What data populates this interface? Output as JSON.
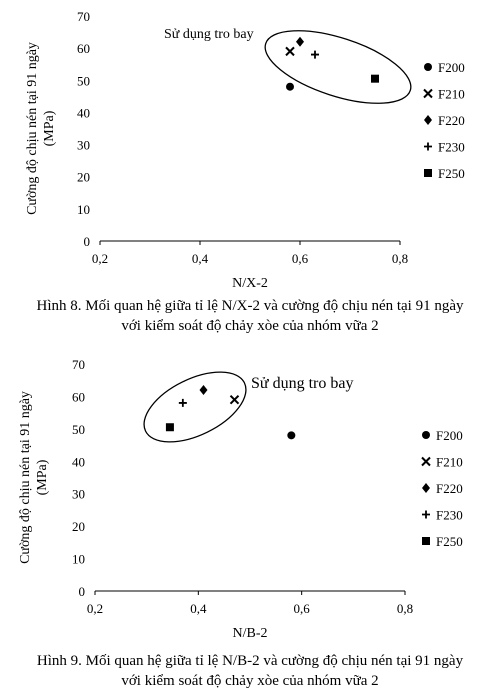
{
  "chart_data": [
    {
      "type": "scatter",
      "xlabel": "N/X-2",
      "ylabel": "Cường độ chịu nén tại 91 ngày (MPa)",
      "ylabel_lines": [
        "Cường độ chịu nén tại 91 ngày",
        "(MPa)"
      ],
      "xlim": [
        0.2,
        0.8
      ],
      "ylim": [
        0,
        70
      ],
      "xticks": [
        "0,2",
        "0,4",
        "0,6",
        "0,8"
      ],
      "yticks": [
        "0",
        "10",
        "20",
        "30",
        "40",
        "50",
        "60",
        "70"
      ],
      "grid": false,
      "legend_position": "right",
      "annotation": "Sử dụng tro bay",
      "series": [
        {
          "name": "F200",
          "marker": "circle",
          "x": [
            0.58
          ],
          "y": [
            48
          ]
        },
        {
          "name": "F210",
          "marker": "x",
          "x": [
            0.58
          ],
          "y": [
            59
          ]
        },
        {
          "name": "F220",
          "marker": "diamond",
          "x": [
            0.6
          ],
          "y": [
            62
          ]
        },
        {
          "name": "F230",
          "marker": "plus",
          "x": [
            0.63
          ],
          "y": [
            58
          ]
        },
        {
          "name": "F250",
          "marker": "square",
          "x": [
            0.75
          ],
          "y": [
            50.5
          ]
        }
      ]
    },
    {
      "type": "scatter",
      "xlabel": "N/B-2",
      "ylabel": "Cường độ chịu nén tại 91 ngày (MPa)",
      "ylabel_lines": [
        "Cường độ chịu nén tại 91 ngày",
        "(MPa)"
      ],
      "xlim": [
        0.2,
        0.8
      ],
      "ylim": [
        0,
        70
      ],
      "xticks": [
        "0,2",
        "0,4",
        "0,6",
        "0,8"
      ],
      "yticks": [
        "0",
        "10",
        "20",
        "30",
        "40",
        "50",
        "60",
        "70"
      ],
      "grid": false,
      "legend_position": "right",
      "annotation": "Sử dụng tro bay",
      "series": [
        {
          "name": "F200",
          "marker": "circle",
          "x": [
            0.58
          ],
          "y": [
            48
          ]
        },
        {
          "name": "F210",
          "marker": "x",
          "x": [
            0.47
          ],
          "y": [
            59
          ]
        },
        {
          "name": "F220",
          "marker": "diamond",
          "x": [
            0.41
          ],
          "y": [
            62
          ]
        },
        {
          "name": "F230",
          "marker": "plus",
          "x": [
            0.37
          ],
          "y": [
            58
          ]
        },
        {
          "name": "F250",
          "marker": "square",
          "x": [
            0.345
          ],
          "y": [
            50.5
          ]
        }
      ]
    }
  ],
  "captions": [
    {
      "line1": "Hình 8. Mối quan hệ giữa tỉ lệ N/X-2 và cường độ chịu nén tại 91 ngày",
      "line2": "với kiểm soát độ chảy xòe của nhóm vữa 2"
    },
    {
      "line1": "Hình 9. Mối quan hệ giữa tỉ lệ N/B-2 và cường độ chịu nén tại 91 ngày",
      "line2": "với kiểm soát độ chảy xòe của nhóm vữa 2"
    }
  ]
}
